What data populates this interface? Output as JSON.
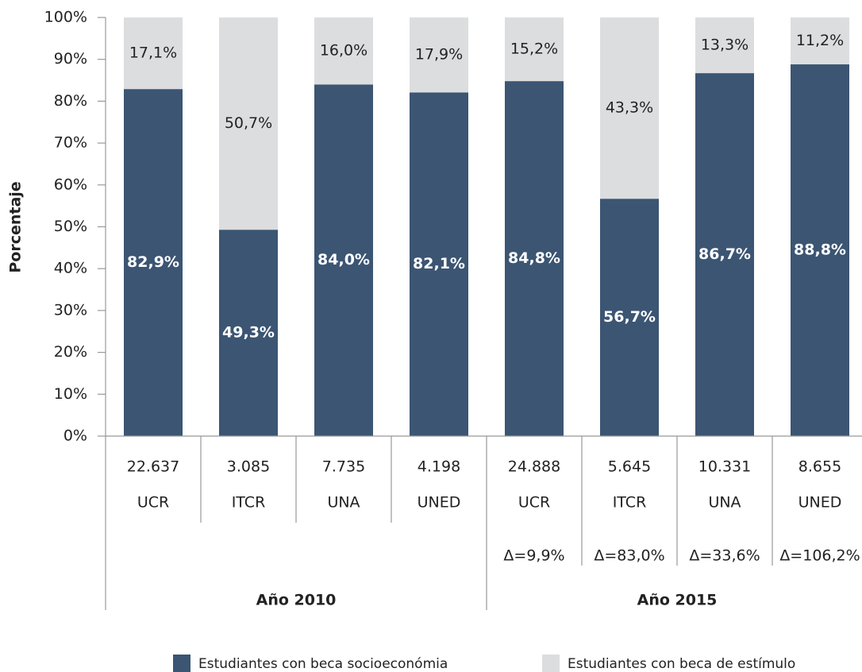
{
  "chart_data": {
    "type": "bar",
    "stacked": true,
    "ylabel": "Porcentaje",
    "categories": [
      "UCR",
      "ITCR",
      "UNA",
      "UNED",
      "UCR",
      "ITCR",
      "UNA",
      "UNED"
    ],
    "counts": [
      22637,
      3085,
      7735,
      4198,
      24888,
      5645,
      10331,
      8655
    ],
    "count_labels": [
      "22.637",
      "3.085",
      "7.735",
      "4.198",
      "24.888",
      "5.645",
      "10.331",
      "8.655"
    ],
    "changes": [
      null,
      null,
      null,
      null,
      9.9,
      83.0,
      33.6,
      106.2
    ],
    "change_labels": [
      null,
      null,
      null,
      null,
      "Δ=9,9%",
      "Δ=83,0%",
      "Δ=33,6%",
      "Δ=106,2%"
    ],
    "group_labels": [
      "Año 2010",
      "Año 2015"
    ],
    "series": [
      {
        "name": "Estudiantes con beca socioeconómia",
        "color": "#3b5573",
        "values": [
          82.9,
          49.3,
          84.0,
          82.1,
          84.8,
          56.7,
          86.7,
          88.8
        ],
        "value_labels": [
          "82,9%",
          "49,3%",
          "84,0%",
          "82,1%",
          "84,8%",
          "56,7%",
          "86,7%",
          "88,8%"
        ]
      },
      {
        "name": "Estudiantes con beca de estímulo",
        "color": "#dcdddf",
        "values": [
          17.1,
          50.7,
          16.0,
          17.9,
          15.2,
          43.3,
          13.3,
          11.2
        ],
        "value_labels": [
          "17,1%",
          "50,7%",
          "16,0%",
          "17,9%",
          "15,2%",
          "43,3%",
          "13,3%",
          "11,2%"
        ]
      }
    ],
    "ylim": [
      0,
      100
    ],
    "yticks": [
      {
        "value": 0,
        "label": "0%"
      },
      {
        "value": 10,
        "label": "10%"
      },
      {
        "value": 20,
        "label": "20%"
      },
      {
        "value": 30,
        "label": "30%"
      },
      {
        "value": 40,
        "label": "40%"
      },
      {
        "value": 50,
        "label": "50%"
      },
      {
        "value": 60,
        "label": "60%"
      },
      {
        "value": 70,
        "label": "70%"
      },
      {
        "value": 80,
        "label": "80%"
      },
      {
        "value": 90,
        "label": "90%"
      },
      {
        "value": 100,
        "label": "100%"
      }
    ]
  }
}
